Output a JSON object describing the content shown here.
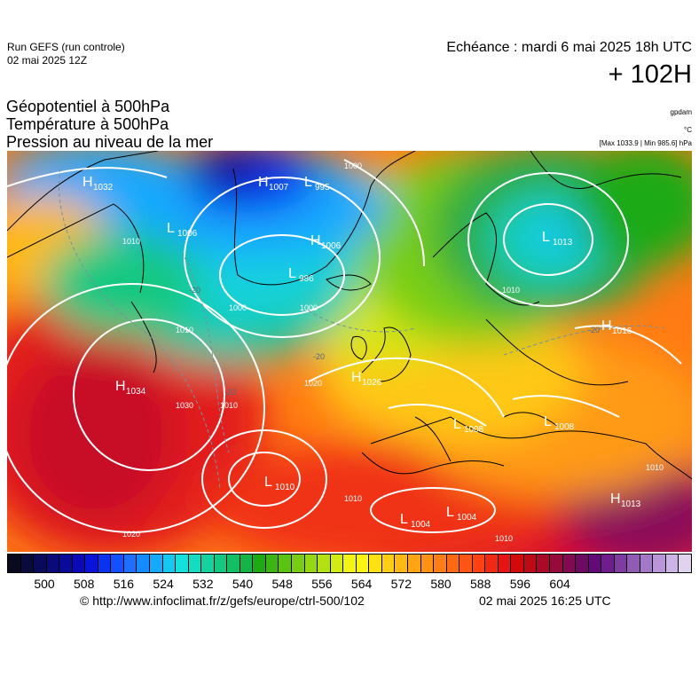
{
  "header": {
    "run_name": "Run GEFS (run controle)",
    "run_date": "02 mai 2025 12Z",
    "echeance": "Echéance : mardi 6 mai 2025 18h UTC",
    "lead_time": "+ 102H"
  },
  "titles": {
    "line1": "Géopotentiel à 500hPa",
    "line2": "Température à 500hPa",
    "line3": "Pression au niveau de la mer"
  },
  "units": {
    "geopotential": "gpdam",
    "temperature": "°C",
    "pressure_range": "[Max 1033.9 | Min 985.6] hPa"
  },
  "colors": {
    "coast": "#000000",
    "isobar": "#ffffff",
    "isotherm": "#7a8fa0"
  },
  "pressure_centers": [
    {
      "type": "H",
      "value": "1032"
    },
    {
      "type": "L",
      "value": "1006"
    },
    {
      "type": "H",
      "value": "1007"
    },
    {
      "type": "L",
      "value": "995"
    },
    {
      "type": "H",
      "value": "1006"
    },
    {
      "type": "L",
      "value": "986"
    },
    {
      "type": "L",
      "value": "1013"
    },
    {
      "type": "H",
      "value": "1016"
    },
    {
      "type": "H",
      "value": "1034"
    },
    {
      "type": "H",
      "value": "1026"
    },
    {
      "type": "L",
      "value": "1008"
    },
    {
      "type": "L",
      "value": "1008"
    },
    {
      "type": "L",
      "value": "1010"
    },
    {
      "type": "L",
      "value": "1004"
    },
    {
      "type": "L",
      "value": "1004"
    },
    {
      "type": "H",
      "value": "1013"
    }
  ],
  "isobar_labels": [
    "1000",
    "1000",
    "1000",
    "1010",
    "1010",
    "1010",
    "1020",
    "1020",
    "1030",
    "1010",
    "1010",
    "1010",
    "1010"
  ],
  "isotherm_labels": [
    "-20",
    "-20",
    "-20",
    "-20"
  ],
  "scale": {
    "ticks": [
      "500",
      "508",
      "516",
      "524",
      "532",
      "540",
      "548",
      "556",
      "564",
      "572",
      "580",
      "588",
      "596",
      "604"
    ],
    "colors": [
      "#0a0a1e",
      "#0a0a3c",
      "#0a0a5a",
      "#0a0a7a",
      "#0a0a9a",
      "#0a0ab8",
      "#0a14d8",
      "#0a32f0",
      "#1450ff",
      "#1e6eff",
      "#148cff",
      "#14aaff",
      "#14c8f0",
      "#14e0dc",
      "#14dcc0",
      "#14d2a0",
      "#14c882",
      "#14be64",
      "#14b446",
      "#1eaa14",
      "#3cb414",
      "#5ac314",
      "#78cd14",
      "#96d714",
      "#b4e114",
      "#d2eb14",
      "#f0f514",
      "#fff514",
      "#ffe114",
      "#ffcd14",
      "#ffb914",
      "#ffa514",
      "#ff9114",
      "#ff7d14",
      "#ff6914",
      "#ff5514",
      "#ff4114",
      "#f02814",
      "#e61414",
      "#d20a0a",
      "#be0a14",
      "#aa0a28",
      "#960a3c",
      "#820a50",
      "#6e0a64",
      "#640a78",
      "#6e1e8c",
      "#7f3ca0",
      "#915ab4",
      "#a378c8",
      "#b996d7",
      "#cdb4e6",
      "#e1d2f0"
    ]
  },
  "footer": {
    "credit": "© http://www.infoclimat.fr/z/gefs/europe/ctrl-500/102",
    "issued": "02 mai 2025 16:25 UTC"
  }
}
